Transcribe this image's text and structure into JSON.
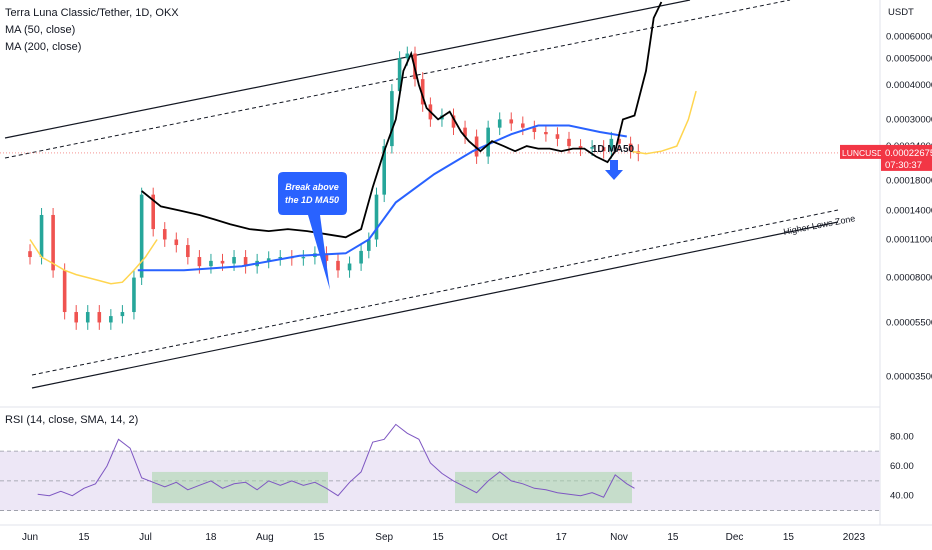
{
  "header": {
    "title": "Terra Luna Classic/Tether, 1D, OKX",
    "ma50": "MA (50, close)",
    "ma200": "MA (200, close)"
  },
  "rsi_label": "RSI (14, close, SMA, 14, 2)",
  "price_axis": {
    "unit": "USDT",
    "ticks": [
      {
        "label": "0.00060000",
        "value": 0.0006
      },
      {
        "label": "0.00050000",
        "value": 0.0005
      },
      {
        "label": "0.00040000",
        "value": 0.0004
      },
      {
        "label": "0.00030000",
        "value": 0.0003
      },
      {
        "label": "0.00024000",
        "value": 0.00024
      },
      {
        "label": "0.00018000",
        "value": 0.00018
      },
      {
        "label": "0.00014000",
        "value": 0.00014
      },
      {
        "label": "0.00011000",
        "value": 0.00011
      },
      {
        "label": "0.00008000",
        "value": 8e-05
      },
      {
        "label": "0.00005500",
        "value": 5.5e-05
      },
      {
        "label": "0.00003500",
        "value": 3.5e-05
      }
    ],
    "price_label": {
      "ticker": "LUNCUSDT",
      "price": "0.00022675",
      "countdown": "07:30:37",
      "value": 0.00022675,
      "color": "#f23645"
    }
  },
  "rsi_axis": {
    "ticks": [
      {
        "label": "80.00",
        "value": 80
      },
      {
        "label": "60.00",
        "value": 60
      },
      {
        "label": "40.00",
        "value": 40
      }
    ],
    "upper": 70,
    "lower": 30,
    "mid": 50
  },
  "x_axis": {
    "ticks": [
      {
        "label": "Jun",
        "day": 0
      },
      {
        "label": "15",
        "day": 14
      },
      {
        "label": "Jul",
        "day": 30
      },
      {
        "label": "18",
        "day": 47
      },
      {
        "label": "Aug",
        "day": 61
      },
      {
        "label": "15",
        "day": 75
      },
      {
        "label": "Sep",
        "day": 92
      },
      {
        "label": "15",
        "day": 106
      },
      {
        "label": "Oct",
        "day": 122
      },
      {
        "label": "17",
        "day": 138
      },
      {
        "label": "Nov",
        "day": 153
      },
      {
        "label": "15",
        "day": 167
      },
      {
        "label": "Dec",
        "day": 183
      },
      {
        "label": "15",
        "day": 197
      },
      {
        "label": "2023",
        "day": 214
      }
    ]
  },
  "annotations": {
    "break_callout": [
      "Break above",
      "the 1D MA50"
    ],
    "ma50_label": "1D MA50",
    "zone_label": "Higher Lows Zone"
  },
  "colors": {
    "up": "#26a69a",
    "down": "#ef5350",
    "ma50": "#2962ff",
    "ma200_proj": "#ffd54f",
    "black_proj": "#000000",
    "rsi": "#7e57c2",
    "rsi_band": "#ede7f6",
    "box": "#a5d6a7",
    "arrow": "#2962ff"
  },
  "chart_data": {
    "type": "candlestick",
    "title": "Terra Luna Classic/Tether, 1D, OKX",
    "scale": "log",
    "candles_close": [
      [
        0,
        9.5e-05
      ],
      [
        3,
        0.000135
      ],
      [
        6,
        8.5e-05
      ],
      [
        9,
        6e-05
      ],
      [
        12,
        5.5e-05
      ],
      [
        15,
        6e-05
      ],
      [
        18,
        5.5e-05
      ],
      [
        21,
        5.8e-05
      ],
      [
        24,
        6e-05
      ],
      [
        27,
        8e-05
      ],
      [
        29,
        0.00016
      ],
      [
        32,
        0.00012
      ],
      [
        35,
        0.00011
      ],
      [
        38,
        0.000105
      ],
      [
        41,
        9.5e-05
      ],
      [
        44,
        8.8e-05
      ],
      [
        47,
        9.2e-05
      ],
      [
        50,
        9e-05
      ],
      [
        53,
        9.5e-05
      ],
      [
        56,
        8.8e-05
      ],
      [
        59,
        9.2e-05
      ],
      [
        62,
        9.4e-05
      ],
      [
        65,
        9.5e-05
      ],
      [
        68,
        9.4e-05
      ],
      [
        71,
        9.5e-05
      ],
      [
        74,
        9.8e-05
      ],
      [
        77,
        9.2e-05
      ],
      [
        80,
        8.5e-05
      ],
      [
        83,
        9e-05
      ],
      [
        86,
        0.0001
      ],
      [
        88,
        0.00011
      ],
      [
        90,
        0.00016
      ],
      [
        92,
        0.00024
      ],
      [
        94,
        0.00038
      ],
      [
        96,
        0.0005
      ],
      [
        98,
        0.00052
      ],
      [
        100,
        0.00042
      ],
      [
        102,
        0.00034
      ],
      [
        104,
        0.0003
      ],
      [
        107,
        0.00031
      ],
      [
        110,
        0.00028
      ],
      [
        113,
        0.00026
      ],
      [
        116,
        0.00022
      ],
      [
        119,
        0.00028
      ],
      [
        122,
        0.0003
      ],
      [
        125,
        0.00029
      ],
      [
        128,
        0.00028
      ],
      [
        131,
        0.00027
      ],
      [
        134,
        0.000265
      ],
      [
        137,
        0.000255
      ],
      [
        140,
        0.00024
      ],
      [
        143,
        0.000235
      ],
      [
        146,
        0.000238
      ],
      [
        149,
        0.00023
      ],
      [
        151,
        0.000255
      ],
      [
        153,
        0.000245
      ],
      [
        156,
        0.00023
      ],
      [
        158,
        0.000225
      ]
    ],
    "ma50": [
      [
        28,
        8.5e-05
      ],
      [
        40,
        8.5e-05
      ],
      [
        55,
        8.8e-05
      ],
      [
        70,
        9.6e-05
      ],
      [
        82,
        9.8e-05
      ],
      [
        88,
        0.00011
      ],
      [
        95,
        0.00015
      ],
      [
        105,
        0.00019
      ],
      [
        115,
        0.00023
      ],
      [
        125,
        0.000265
      ],
      [
        132,
        0.000285
      ],
      [
        140,
        0.000285
      ],
      [
        148,
        0.00027
      ],
      [
        155,
        0.00026
      ]
    ],
    "projection_black": [
      [
        29,
        0.000165
      ],
      [
        34,
        0.000145
      ],
      [
        39,
        0.00014
      ],
      [
        44,
        0.000135
      ],
      [
        48,
        0.00013
      ],
      [
        52,
        0.000125
      ],
      [
        57,
        0.00012
      ],
      [
        62,
        0.000118
      ],
      [
        67,
        0.00012
      ],
      [
        72,
        0.000118
      ],
      [
        77,
        0.000115
      ],
      [
        82,
        0.000112
      ],
      [
        86,
        0.00012
      ],
      [
        89,
        0.00017
      ],
      [
        92,
        0.00023
      ],
      [
        95,
        0.0003
      ],
      [
        97,
        0.00045
      ],
      [
        99,
        0.00052
      ],
      [
        101,
        0.0004
      ],
      [
        103,
        0.00033
      ],
      [
        106,
        0.0003
      ],
      [
        109,
        0.00032
      ],
      [
        112,
        0.00027
      ],
      [
        114,
        0.00025
      ],
      [
        117,
        0.00023
      ],
      [
        120,
        0.00025
      ],
      [
        123,
        0.00024
      ],
      [
        126,
        0.00023
      ],
      [
        129,
        0.00024
      ],
      [
        132,
        0.000235
      ],
      [
        135,
        0.000235
      ],
      [
        138,
        0.00023
      ],
      [
        141,
        0.000235
      ],
      [
        144,
        0.000235
      ],
      [
        147,
        0.00022
      ],
      [
        150,
        0.00021
      ],
      [
        152,
        0.00023
      ],
      [
        154,
        0.0003
      ],
      [
        157,
        0.00031
      ],
      [
        160,
        0.00045
      ],
      [
        162,
        0.0007
      ],
      [
        164,
        0.0008
      ]
    ],
    "projection_ma200": [
      [
        0,
        0.00011
      ],
      [
        3,
        9.5e-05
      ],
      [
        6,
        9e-05
      ],
      [
        9,
        8.5e-05
      ],
      [
        12,
        8.2e-05
      ],
      [
        15,
        8e-05
      ],
      [
        18,
        7.8e-05
      ],
      [
        21,
        7.6e-05
      ],
      [
        24,
        7.7e-05
      ],
      [
        27,
        8.5e-05
      ],
      [
        30,
        9.5e-05
      ],
      [
        33,
        0.00011
      ],
      [
        156,
        0.00023
      ],
      [
        160,
        0.000225
      ],
      [
        164,
        0.00023
      ],
      [
        168,
        0.00024
      ],
      [
        171,
        0.0003
      ],
      [
        173,
        0.00038
      ]
    ],
    "rsi": [
      [
        2,
        41
      ],
      [
        5,
        40
      ],
      [
        8,
        43
      ],
      [
        11,
        40
      ],
      [
        14,
        45
      ],
      [
        17,
        48
      ],
      [
        20,
        60
      ],
      [
        23,
        78
      ],
      [
        26,
        72
      ],
      [
        29,
        52
      ],
      [
        32,
        49
      ],
      [
        35,
        46
      ],
      [
        38,
        49
      ],
      [
        41,
        44
      ],
      [
        44,
        47
      ],
      [
        47,
        50
      ],
      [
        50,
        45
      ],
      [
        53,
        48
      ],
      [
        56,
        49
      ],
      [
        59,
        44
      ],
      [
        62,
        50
      ],
      [
        65,
        47
      ],
      [
        68,
        50
      ],
      [
        71,
        47
      ],
      [
        74,
        49
      ],
      [
        77,
        45
      ],
      [
        80,
        40
      ],
      [
        83,
        49
      ],
      [
        86,
        56
      ],
      [
        89,
        76
      ],
      [
        92,
        78
      ],
      [
        95,
        88
      ],
      [
        98,
        82
      ],
      [
        101,
        78
      ],
      [
        104,
        62
      ],
      [
        107,
        55
      ],
      [
        110,
        50
      ],
      [
        113,
        46
      ],
      [
        116,
        42
      ],
      [
        119,
        50
      ],
      [
        122,
        56
      ],
      [
        125,
        50
      ],
      [
        128,
        48
      ],
      [
        131,
        45
      ],
      [
        134,
        44
      ],
      [
        137,
        42
      ],
      [
        140,
        41
      ],
      [
        143,
        40
      ],
      [
        146,
        42
      ],
      [
        149,
        39
      ],
      [
        152,
        54
      ],
      [
        155,
        48
      ],
      [
        157,
        45
      ]
    ],
    "ylim_price": [
      3e-05,
      0.0008
    ],
    "ylim_rsi": [
      25,
      95
    ]
  }
}
